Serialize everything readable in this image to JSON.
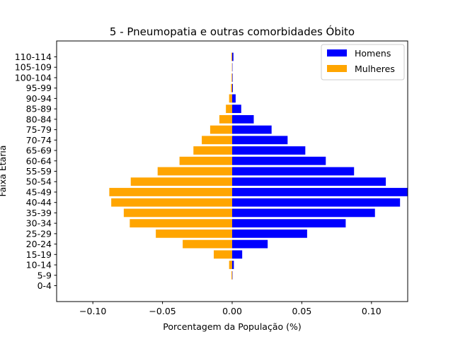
{
  "chart_data": {
    "type": "bar",
    "orientation": "horizontal",
    "title": "5 - Pneumopatia e outras comorbidades Óbito",
    "xlabel": "Porcentagem da População (%)",
    "ylabel": "Faixa Etária",
    "xlim": [
      -0.126,
      0.126
    ],
    "xticks": [
      -0.1,
      -0.05,
      0.0,
      0.05,
      0.1
    ],
    "xtick_labels": [
      "−0.10",
      "−0.05",
      "0.00",
      "0.05",
      "0.10"
    ],
    "categories": [
      "0-4",
      "5-9",
      "10-14",
      "15-19",
      "20-24",
      "25-29",
      "30-34",
      "35-39",
      "40-44",
      "45-49",
      "50-54",
      "55-59",
      "60-64",
      "65-69",
      "70-74",
      "75-79",
      "80-84",
      "85-89",
      "90-94",
      "95-99",
      "100-104",
      "105-109",
      "110-114"
    ],
    "legend_position": "top-right",
    "grid": false,
    "series": [
      {
        "name": "Homens",
        "color": "#0000ff",
        "values": [
          0.0,
          0.0002,
          0.0012,
          0.0072,
          0.0255,
          0.0538,
          0.0815,
          0.1025,
          0.1205,
          0.1265,
          0.1103,
          0.0875,
          0.0672,
          0.0525,
          0.0398,
          0.0283,
          0.0155,
          0.0065,
          0.0025,
          0.0005,
          0.0003,
          0.0002,
          0.0009
        ]
      },
      {
        "name": "Mulheres",
        "color": "#ffa500",
        "values": [
          0.0,
          -0.0005,
          -0.0022,
          -0.0132,
          -0.0355,
          -0.0548,
          -0.0735,
          -0.0778,
          -0.0868,
          -0.0882,
          -0.0728,
          -0.0535,
          -0.0378,
          -0.0278,
          -0.0218,
          -0.0158,
          -0.0092,
          -0.0045,
          -0.0022,
          -0.0008,
          -0.0004,
          -0.0002,
          -0.0005
        ]
      }
    ]
  }
}
